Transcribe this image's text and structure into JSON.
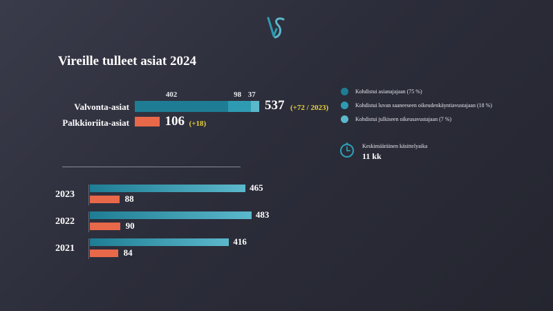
{
  "title": "Vireille tulleet asiat 2024",
  "colors": {
    "dark_teal": "#1e7d94",
    "mid_teal": "#2e9bb2",
    "light_teal": "#5cb8cb",
    "orange": "#e8684a",
    "yellow": "#e8d23a"
  },
  "chart_data": [
    {
      "type": "bar",
      "orientation": "horizontal-stacked",
      "categories": [
        "Valvonta-asiat",
        "Palkkioriita-asiat"
      ],
      "series": [
        {
          "name": "Kohdistui asianajajaan (75 %)",
          "values": [
            402,
            0
          ]
        },
        {
          "name": "Kohdistui luvan saaneeseen oikeudenkäyntiavustajaan (18 %)",
          "values": [
            98,
            0
          ]
        },
        {
          "name": "Kohdistui julkiseen oikeusavustajaan (7 %)",
          "values": [
            37,
            0
          ]
        },
        {
          "values": [
            0,
            106
          ]
        }
      ],
      "segment_labels": [
        "402",
        "98",
        "37"
      ],
      "totals": [
        "537",
        "106"
      ],
      "deltas": [
        "(+72 / 2023)",
        "(+18)"
      ],
      "xlim": [
        0,
        537
      ]
    },
    {
      "type": "bar",
      "orientation": "horizontal-grouped",
      "categories": [
        "2023",
        "2022",
        "2021"
      ],
      "series": [
        {
          "values": [
            465,
            483,
            416
          ]
        },
        {
          "values": [
            88,
            90,
            84
          ]
        }
      ],
      "xlim": [
        0,
        537
      ]
    }
  ],
  "legend": [
    {
      "label": "Kohdistui asianajajaan (75 %)",
      "color": "#1e7d94"
    },
    {
      "label": "Kohdistui luvan saaneeseen oikeudenkäyntiavustajaan (18 %)",
      "color": "#2e9bb2"
    },
    {
      "label": "Kohdistui julkiseen oikeusavustajaan (7 %)",
      "color": "#5cb8cb"
    }
  ],
  "average": {
    "label": "Keskimääräinen käsittelyaika",
    "value": "11 kk",
    "icon": "clock-icon"
  }
}
